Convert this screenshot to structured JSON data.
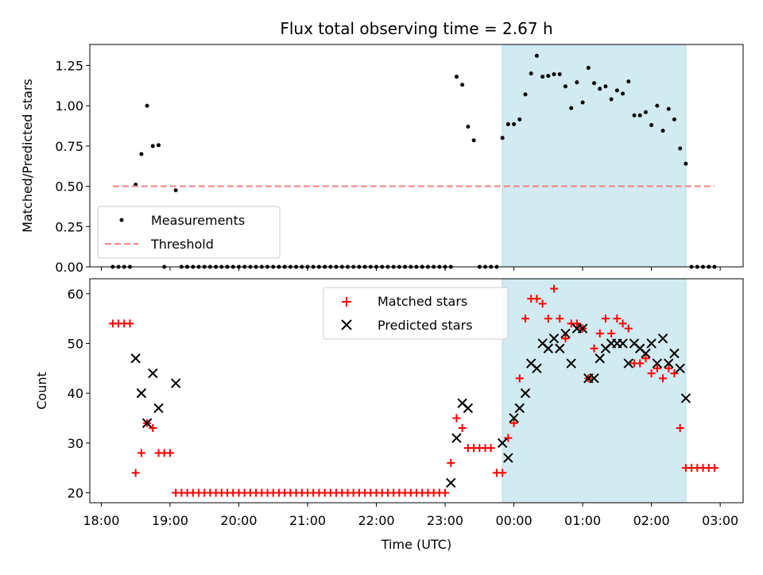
{
  "chart_data": [
    {
      "type": "scatter",
      "title": "Flux total observing time = 2.67 h",
      "xlabel": "",
      "ylabel": "Matched/Predicted stars",
      "ylim": [
        0,
        1.38
      ],
      "xlim": [
        "17:50",
        "03:20"
      ],
      "y_ticks": [
        "0.00",
        "0.25",
        "0.50",
        "0.75",
        "1.00",
        "1.25"
      ],
      "highlight_span": {
        "start": "23:50",
        "end": "02:30",
        "color": "#add8e6"
      },
      "legend_position": "lower-left",
      "series": [
        {
          "name": "Measurements",
          "color": "#000000",
          "marker": "dot",
          "points": [
            [
              "18:10",
              0
            ],
            [
              "18:15",
              0
            ],
            [
              "18:20",
              0
            ],
            [
              "18:25",
              0
            ],
            [
              "18:30",
              0.51
            ],
            [
              "18:35",
              0.7
            ],
            [
              "18:40",
              1.0
            ],
            [
              "18:45",
              0.75
            ],
            [
              "18:50",
              0.755
            ],
            [
              "18:55",
              0
            ],
            [
              "19:05",
              0.475
            ],
            [
              "19:10",
              0
            ],
            [
              "19:15",
              0
            ],
            [
              "19:20",
              0
            ],
            [
              "19:25",
              0
            ],
            [
              "19:30",
              0
            ],
            [
              "19:35",
              0
            ],
            [
              "19:40",
              0
            ],
            [
              "19:45",
              0
            ],
            [
              "19:50",
              0
            ],
            [
              "19:55",
              0
            ],
            [
              "20:00",
              0
            ],
            [
              "20:05",
              0
            ],
            [
              "20:10",
              0
            ],
            [
              "20:15",
              0
            ],
            [
              "20:20",
              0
            ],
            [
              "20:25",
              0
            ],
            [
              "20:30",
              0
            ],
            [
              "20:35",
              0
            ],
            [
              "20:40",
              0
            ],
            [
              "20:45",
              0
            ],
            [
              "20:50",
              0
            ],
            [
              "20:55",
              0
            ],
            [
              "21:00",
              0
            ],
            [
              "21:05",
              0
            ],
            [
              "21:10",
              0
            ],
            [
              "21:15",
              0
            ],
            [
              "21:20",
              0
            ],
            [
              "21:25",
              0
            ],
            [
              "21:30",
              0
            ],
            [
              "21:35",
              0
            ],
            [
              "21:40",
              0
            ],
            [
              "21:45",
              0
            ],
            [
              "21:50",
              0
            ],
            [
              "21:55",
              0
            ],
            [
              "22:00",
              0
            ],
            [
              "22:05",
              0
            ],
            [
              "22:10",
              0
            ],
            [
              "22:15",
              0
            ],
            [
              "22:20",
              0
            ],
            [
              "22:25",
              0
            ],
            [
              "22:30",
              0
            ],
            [
              "22:35",
              0
            ],
            [
              "22:40",
              0
            ],
            [
              "22:45",
              0
            ],
            [
              "22:50",
              0
            ],
            [
              "22:55",
              0
            ],
            [
              "23:00",
              0
            ],
            [
              "23:05",
              0
            ],
            [
              "23:10",
              1.18
            ],
            [
              "23:15",
              1.13
            ],
            [
              "23:20",
              0.87
            ],
            [
              "23:25",
              0.785
            ],
            [
              "23:30",
              0
            ],
            [
              "23:35",
              0
            ],
            [
              "23:40",
              0
            ],
            [
              "23:45",
              0
            ],
            [
              "23:50",
              0.8
            ],
            [
              "23:55",
              0.885
            ],
            [
              "00:00",
              0.885
            ],
            [
              "00:05",
              0.915
            ],
            [
              "00:10",
              1.07
            ],
            [
              "00:15",
              1.2
            ],
            [
              "00:20",
              1.31
            ],
            [
              "00:25",
              1.18
            ],
            [
              "00:30",
              1.185
            ],
            [
              "00:35",
              1.195
            ],
            [
              "00:40",
              1.195
            ],
            [
              "00:45",
              1.12
            ],
            [
              "00:50",
              0.985
            ],
            [
              "00:55",
              1.145
            ],
            [
              "01:00",
              1.02
            ],
            [
              "01:05",
              1.235
            ],
            [
              "01:10",
              1.14
            ],
            [
              "01:15",
              1.105
            ],
            [
              "01:20",
              1.12
            ],
            [
              "01:25",
              1.04
            ],
            [
              "01:30",
              1.095
            ],
            [
              "01:35",
              1.075
            ],
            [
              "01:40",
              1.15
            ],
            [
              "01:45",
              0.94
            ],
            [
              "01:50",
              0.94
            ],
            [
              "01:55",
              0.96
            ],
            [
              "02:00",
              0.88
            ],
            [
              "02:05",
              1.0
            ],
            [
              "02:10",
              0.845
            ],
            [
              "02:15",
              0.98
            ],
            [
              "02:20",
              0.915
            ],
            [
              "02:25",
              0.735
            ],
            [
              "02:30",
              0.64
            ],
            [
              "02:35",
              0
            ],
            [
              "02:40",
              0
            ],
            [
              "02:45",
              0
            ],
            [
              "02:50",
              0
            ],
            [
              "02:55",
              0
            ]
          ]
        },
        {
          "name": "Threshold",
          "color": "#f08080",
          "line_style": "dashed",
          "points": [
            [
              "18:10",
              0.5
            ],
            [
              "02:55",
              0.5
            ]
          ]
        }
      ]
    },
    {
      "type": "scatter",
      "title": "",
      "xlabel": "Time (UTC)",
      "ylabel": "Count",
      "ylim": [
        18,
        63
      ],
      "xlim": [
        "17:50",
        "03:20"
      ],
      "y_ticks": [
        "20",
        "30",
        "40",
        "50",
        "60"
      ],
      "x_ticks": [
        "18:00",
        "19:00",
        "20:00",
        "21:00",
        "22:00",
        "23:00",
        "00:00",
        "01:00",
        "02:00",
        "03:00"
      ],
      "highlight_span": {
        "start": "23:50",
        "end": "02:30",
        "color": "#add8e6"
      },
      "legend_position": "upper-center",
      "series": [
        {
          "name": "Matched stars",
          "color": "#ff0000",
          "marker": "plus",
          "points": [
            [
              "18:10",
              54
            ],
            [
              "18:15",
              54
            ],
            [
              "18:20",
              54
            ],
            [
              "18:25",
              54
            ],
            [
              "18:30",
              24
            ],
            [
              "18:35",
              28
            ],
            [
              "18:40",
              34
            ],
            [
              "18:45",
              33
            ],
            [
              "18:50",
              28
            ],
            [
              "18:55",
              28
            ],
            [
              "19:00",
              28
            ],
            [
              "19:05",
              20
            ],
            [
              "19:10",
              20
            ],
            [
              "19:15",
              20
            ],
            [
              "19:20",
              20
            ],
            [
              "19:25",
              20
            ],
            [
              "19:30",
              20
            ],
            [
              "19:35",
              20
            ],
            [
              "19:40",
              20
            ],
            [
              "19:45",
              20
            ],
            [
              "19:50",
              20
            ],
            [
              "19:55",
              20
            ],
            [
              "20:00",
              20
            ],
            [
              "20:05",
              20
            ],
            [
              "20:10",
              20
            ],
            [
              "20:15",
              20
            ],
            [
              "20:20",
              20
            ],
            [
              "20:25",
              20
            ],
            [
              "20:30",
              20
            ],
            [
              "20:35",
              20
            ],
            [
              "20:40",
              20
            ],
            [
              "20:45",
              20
            ],
            [
              "20:50",
              20
            ],
            [
              "20:55",
              20
            ],
            [
              "21:00",
              20
            ],
            [
              "21:05",
              20
            ],
            [
              "21:10",
              20
            ],
            [
              "21:15",
              20
            ],
            [
              "21:20",
              20
            ],
            [
              "21:25",
              20
            ],
            [
              "21:30",
              20
            ],
            [
              "21:35",
              20
            ],
            [
              "21:40",
              20
            ],
            [
              "21:45",
              20
            ],
            [
              "21:50",
              20
            ],
            [
              "21:55",
              20
            ],
            [
              "22:00",
              20
            ],
            [
              "22:05",
              20
            ],
            [
              "22:10",
              20
            ],
            [
              "22:15",
              20
            ],
            [
              "22:20",
              20
            ],
            [
              "22:25",
              20
            ],
            [
              "22:30",
              20
            ],
            [
              "22:35",
              20
            ],
            [
              "22:40",
              20
            ],
            [
              "22:45",
              20
            ],
            [
              "22:50",
              20
            ],
            [
              "22:55",
              20
            ],
            [
              "23:00",
              20
            ],
            [
              "23:05",
              26
            ],
            [
              "23:10",
              35
            ],
            [
              "23:15",
              33
            ],
            [
              "23:20",
              29
            ],
            [
              "23:25",
              29
            ],
            [
              "23:30",
              29
            ],
            [
              "23:35",
              29
            ],
            [
              "23:40",
              29
            ],
            [
              "23:45",
              24
            ],
            [
              "23:50",
              24
            ],
            [
              "23:55",
              31
            ],
            [
              "00:00",
              34
            ],
            [
              "00:05",
              43
            ],
            [
              "00:10",
              55
            ],
            [
              "00:15",
              59
            ],
            [
              "00:20",
              59
            ],
            [
              "00:25",
              58
            ],
            [
              "00:30",
              55
            ],
            [
              "00:35",
              61
            ],
            [
              "00:40",
              55
            ],
            [
              "00:45",
              51
            ],
            [
              "00:50",
              54
            ],
            [
              "00:55",
              54
            ],
            [
              "01:00",
              53
            ],
            [
              "01:05",
              43
            ],
            [
              "01:10",
              49
            ],
            [
              "01:15",
              52
            ],
            [
              "01:20",
              55
            ],
            [
              "01:25",
              52
            ],
            [
              "01:30",
              55
            ],
            [
              "01:35",
              54
            ],
            [
              "01:40",
              53
            ],
            [
              "01:45",
              46
            ],
            [
              "01:50",
              46
            ],
            [
              "01:55",
              47
            ],
            [
              "02:00",
              44
            ],
            [
              "02:05",
              45
            ],
            [
              "02:10",
              43
            ],
            [
              "02:15",
              45
            ],
            [
              "02:20",
              44
            ],
            [
              "02:25",
              33
            ],
            [
              "02:30",
              25
            ],
            [
              "02:35",
              25
            ],
            [
              "02:40",
              25
            ],
            [
              "02:45",
              25
            ],
            [
              "02:50",
              25
            ],
            [
              "02:55",
              25
            ]
          ]
        },
        {
          "name": "Predicted stars",
          "color": "#000000",
          "marker": "x",
          "points": [
            [
              "18:30",
              47
            ],
            [
              "18:35",
              40
            ],
            [
              "18:40",
              34
            ],
            [
              "18:45",
              44
            ],
            [
              "18:50",
              37
            ],
            [
              "19:05",
              42
            ],
            [
              "23:05",
              22
            ],
            [
              "23:10",
              31
            ],
            [
              "23:15",
              38
            ],
            [
              "23:20",
              37
            ],
            [
              "23:50",
              30
            ],
            [
              "23:55",
              27
            ],
            [
              "00:00",
              35
            ],
            [
              "00:05",
              37
            ],
            [
              "00:10",
              40
            ],
            [
              "00:15",
              46
            ],
            [
              "00:20",
              45
            ],
            [
              "00:25",
              50
            ],
            [
              "00:30",
              49
            ],
            [
              "00:35",
              51
            ],
            [
              "00:40",
              49
            ],
            [
              "00:45",
              52
            ],
            [
              "00:50",
              46
            ],
            [
              "00:55",
              53
            ],
            [
              "01:00",
              53
            ],
            [
              "01:05",
              43
            ],
            [
              "01:10",
              43
            ],
            [
              "01:15",
              47
            ],
            [
              "01:20",
              49
            ],
            [
              "01:25",
              50
            ],
            [
              "01:30",
              50
            ],
            [
              "01:35",
              50
            ],
            [
              "01:40",
              46
            ],
            [
              "01:45",
              50
            ],
            [
              "01:50",
              49
            ],
            [
              "01:55",
              48
            ],
            [
              "02:00",
              50
            ],
            [
              "02:05",
              46
            ],
            [
              "02:10",
              51
            ],
            [
              "02:15",
              46
            ],
            [
              "02:20",
              48
            ],
            [
              "02:25",
              45
            ],
            [
              "02:30",
              39
            ]
          ]
        }
      ]
    }
  ]
}
